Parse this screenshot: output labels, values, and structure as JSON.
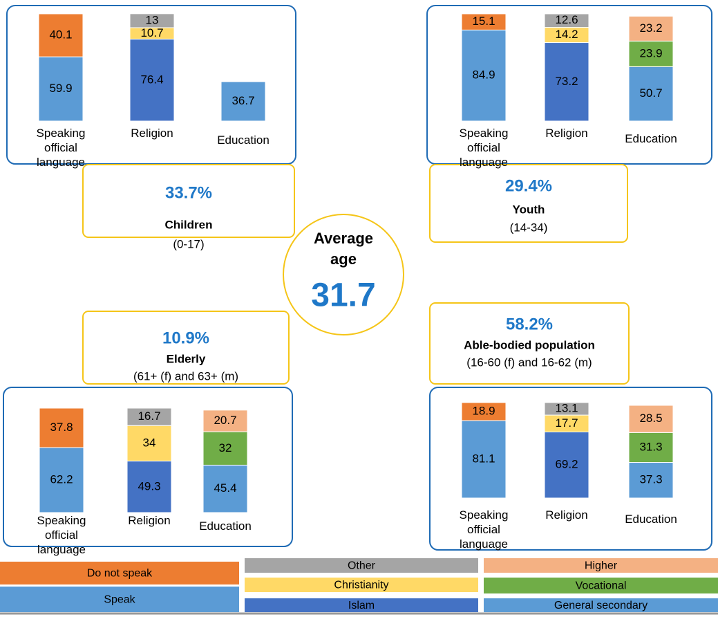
{
  "chart_data": [
    {
      "type": "bar",
      "stacked": true,
      "categories": [
        "Speaking official language",
        "Religion",
        "Education"
      ],
      "ylim": [
        0,
        100
      ],
      "series": [
        {
          "name": "Speak",
          "color": "#5b9bd5",
          "values": [
            59.9,
            null,
            null
          ]
        },
        {
          "name": "Do not speak",
          "color": "#ed7d31",
          "values": [
            40.1,
            null,
            null
          ]
        },
        {
          "name": "Islam",
          "color": "#4472c4",
          "values": [
            null,
            76.4,
            null
          ]
        },
        {
          "name": "Christianity",
          "color": "#ffd966",
          "values": [
            null,
            10.7,
            null
          ]
        },
        {
          "name": "Other",
          "color": "#a5a5a5",
          "values": [
            null,
            13,
            null
          ]
        },
        {
          "name": "General secondary",
          "color": "#5b9bd5",
          "values": [
            null,
            null,
            36.7
          ]
        },
        {
          "name": "Vocational",
          "color": "#70ad47",
          "values": [
            null,
            null,
            null
          ]
        },
        {
          "name": "Higher",
          "color": "#f4b183",
          "values": [
            null,
            null,
            null
          ]
        }
      ]
    },
    {
      "type": "bar",
      "stacked": true,
      "categories": [
        "Speaking official language",
        "Religion",
        "Education"
      ],
      "ylim": [
        0,
        100
      ],
      "series": [
        {
          "name": "Speak",
          "color": "#5b9bd5",
          "values": [
            84.9,
            null,
            null
          ]
        },
        {
          "name": "Do not speak",
          "color": "#ed7d31",
          "values": [
            15.1,
            null,
            null
          ]
        },
        {
          "name": "Islam",
          "color": "#4472c4",
          "values": [
            null,
            73.2,
            null
          ]
        },
        {
          "name": "Christianity",
          "color": "#ffd966",
          "values": [
            null,
            14.2,
            null
          ]
        },
        {
          "name": "Other",
          "color": "#a5a5a5",
          "values": [
            null,
            12.6,
            null
          ]
        },
        {
          "name": "General secondary",
          "color": "#5b9bd5",
          "values": [
            null,
            null,
            50.7
          ]
        },
        {
          "name": "Vocational",
          "color": "#70ad47",
          "values": [
            null,
            null,
            23.9
          ]
        },
        {
          "name": "Higher",
          "color": "#f4b183",
          "values": [
            null,
            null,
            23.2
          ]
        }
      ]
    },
    {
      "type": "bar",
      "stacked": true,
      "categories": [
        "Speaking official language",
        "Religion",
        "Education"
      ],
      "ylim": [
        0,
        100
      ],
      "series": [
        {
          "name": "Speak",
          "color": "#5b9bd5",
          "values": [
            62.2,
            null,
            null
          ]
        },
        {
          "name": "Do not speak",
          "color": "#ed7d31",
          "values": [
            37.8,
            null,
            null
          ]
        },
        {
          "name": "Islam",
          "color": "#4472c4",
          "values": [
            null,
            49.3,
            null
          ]
        },
        {
          "name": "Christianity",
          "color": "#ffd966",
          "values": [
            null,
            34,
            null
          ]
        },
        {
          "name": "Other",
          "color": "#a5a5a5",
          "values": [
            null,
            16.7,
            null
          ]
        },
        {
          "name": "General secondary",
          "color": "#5b9bd5",
          "values": [
            null,
            null,
            45.4
          ]
        },
        {
          "name": "Vocational",
          "color": "#70ad47",
          "values": [
            null,
            null,
            32
          ]
        },
        {
          "name": "Higher",
          "color": "#f4b183",
          "values": [
            null,
            null,
            20.7
          ]
        }
      ]
    },
    {
      "type": "bar",
      "stacked": true,
      "categories": [
        "Speaking official language",
        "Religion",
        "Education"
      ],
      "ylim": [
        0,
        100
      ],
      "series": [
        {
          "name": "Speak",
          "color": "#5b9bd5",
          "values": [
            81.1,
            null,
            null
          ]
        },
        {
          "name": "Do not speak",
          "color": "#ed7d31",
          "values": [
            18.9,
            null,
            null
          ]
        },
        {
          "name": "Islam",
          "color": "#4472c4",
          "values": [
            null,
            69.2,
            null
          ]
        },
        {
          "name": "Christianity",
          "color": "#ffd966",
          "values": [
            null,
            17.7,
            null
          ]
        },
        {
          "name": "Other",
          "color": "#a5a5a5",
          "values": [
            null,
            13.1,
            null
          ]
        },
        {
          "name": "General secondary",
          "color": "#5b9bd5",
          "values": [
            null,
            null,
            37.3
          ]
        },
        {
          "name": "Vocational",
          "color": "#70ad47",
          "values": [
            null,
            null,
            31.3
          ]
        },
        {
          "name": "Higher",
          "color": "#f4b183",
          "values": [
            null,
            null,
            28.5
          ]
        }
      ]
    }
  ],
  "groups": [
    {
      "share": "33.7%",
      "label": "Children",
      "range": "(0-17)"
    },
    {
      "share": "29.4%",
      "label": "Youth",
      "range": "(14-34)"
    },
    {
      "share": "10.9%",
      "label": "Elderly",
      "range": "(61+ (f) and 63+ (m)"
    },
    {
      "share": "58.2%",
      "label": "Able-bodied population",
      "range": "(16-60 (f) and 16-62 (m)"
    }
  ],
  "center": {
    "title": "Average age",
    "value": "31.7"
  }
}
